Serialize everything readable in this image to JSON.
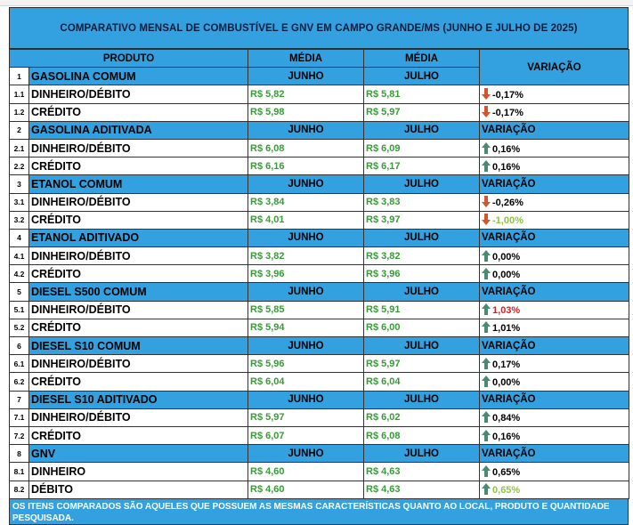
{
  "title": "COMPARATIVO MENSAL  DE COMBUSTÍVEL E GNV EM CAMPO GRANDE/MS (JUNHO E JULHO DE 2025)",
  "header": {
    "produto": "PRODUTO",
    "media1": "MÉDIA",
    "media2": "MÉDIA",
    "variacao": "VARIAÇÃO",
    "junho": "JUNHO",
    "julho": "JULHO"
  },
  "groups": [
    {
      "num": "1",
      "name": "GASOLINA COMUM",
      "col1": "JUNHO",
      "col2": "JULHO",
      "col3": "",
      "rows": [
        {
          "num": "1.1",
          "name": "DINHEIRO/DÉBITO",
          "v1": "R$ 5,82",
          "v2": "R$ 5,81",
          "dir": "down",
          "var": "-0,17%",
          "varcolor": "black"
        },
        {
          "num": "1.2",
          "name": "CRÉDITO",
          "v1": "R$ 5,98",
          "v2": "R$ 5,97",
          "dir": "down",
          "var": "-0,17%",
          "varcolor": "black"
        }
      ]
    },
    {
      "num": "2",
      "name": "GASOLINA ADITIVADA",
      "col1": "JUNHO",
      "col2": "JULHO",
      "col3": "VARIAÇÃO",
      "rows": [
        {
          "num": "2.1",
          "name": "DINHEIRO/DÉBITO",
          "v1": "R$ 6,08",
          "v2": "R$ 6,09",
          "dir": "up",
          "var": "0,16%",
          "varcolor": "black"
        },
        {
          "num": "2.2",
          "name": "CRÉDITO",
          "v1": "R$ 6,16",
          "v2": "R$ 6,17",
          "dir": "up",
          "var": "0,16%",
          "varcolor": "black"
        }
      ]
    },
    {
      "num": "3",
      "name": "ETANOL COMUM",
      "col1": "JUNHO",
      "col2": "JULHO",
      "col3": "VARIAÇÃO",
      "rows": [
        {
          "num": "3.1",
          "name": " DINHEIRO/DÉBITO",
          "v1": "R$ 3,84",
          "v2": "R$ 3,83",
          "dir": "down",
          "var": "-0,26%",
          "varcolor": "black"
        },
        {
          "num": "3.2",
          "name": "CRÉDITO",
          "v1": "R$ 4,01",
          "v2": "R$ 3,97",
          "dir": "down",
          "var": "-1,00%",
          "varcolor": "green"
        }
      ]
    },
    {
      "num": "4",
      "name": "ETANOL ADITIVADO",
      "col1": "JUNHO",
      "col2": "JULHO",
      "col3": "VARIAÇÃO",
      "rows": [
        {
          "num": "4.1",
          "name": "DINHEIRO/DÉBITO",
          "v1": "R$ 3,82",
          "v2": "R$ 3,82",
          "dir": "up",
          "var": "0,00%",
          "varcolor": "black"
        },
        {
          "num": "4.2",
          "name": "CRÉDITO",
          "v1": "R$ 3,96",
          "v2": "R$ 3,96",
          "dir": "up",
          "var": "0,00%",
          "varcolor": "black"
        }
      ]
    },
    {
      "num": "5",
      "name": "DIESEL S500 COMUM",
      "col1": "JUNHO",
      "col2": "JULHO",
      "col3": "VARIAÇÃO",
      "rows": [
        {
          "num": "5.1",
          "name": "DINHEIRO/DÉBITO",
          "v1": "R$ 5,85",
          "v2": "R$ 5,91",
          "dir": "up",
          "var": "1,03%",
          "varcolor": "red"
        },
        {
          "num": "5.2",
          "name": "CRÉDITO",
          "v1": "R$ 5,94",
          "v2": "R$ 6,00",
          "dir": "up",
          "var": "1,01%",
          "varcolor": "black"
        }
      ]
    },
    {
      "num": "6",
      "name": "DIESEL S10 COMUM",
      "col1": "JUNHO",
      "col2": "JULHO",
      "col3": "VARIAÇÃO",
      "rows": [
        {
          "num": "6.1",
          "name": "DINHEIRO/DÉBITO",
          "v1": "R$ 5,96",
          "v2": "R$ 5,97",
          "dir": "up",
          "var": "0,17%",
          "varcolor": "black"
        },
        {
          "num": "6.2",
          "name": "CRÉDITO",
          "v1": "R$ 6,04",
          "v2": "R$ 6,04",
          "dir": "up",
          "var": "0,00%",
          "varcolor": "black"
        }
      ]
    },
    {
      "num": "7",
      "name": "DIESEL S10 ADITIVADO",
      "col1": "JUNHO",
      "col2": "JULHO",
      "col3": "VARIAÇÃO",
      "rows": [
        {
          "num": "7.1",
          "name": "DINHEIRO/DÉBITO",
          "v1": "R$ 5,97",
          "v2": "R$ 6,02",
          "dir": "up",
          "var": "0,84%",
          "varcolor": "black"
        },
        {
          "num": "7.2",
          "name": "CRÉDITO",
          "v1": "R$ 6,07",
          "v2": "R$ 6,08",
          "dir": "up",
          "var": "0,16%",
          "varcolor": "black"
        }
      ]
    },
    {
      "num": "8",
      "name": "GNV",
      "col1": "JUNHO",
      "col2": "JULHO",
      "col3": "VARIAÇÃO",
      "rows": [
        {
          "num": "8.1",
          "name": "DINHEIRO",
          "v1": "R$ 4,60",
          "v2": "R$ 4,63",
          "dir": "up",
          "var": "0,65%",
          "varcolor": "black"
        },
        {
          "num": "8.2",
          "name": "DÉBITO",
          "v1": "R$ 4,60",
          "v2": "R$ 4,63",
          "dir": "up",
          "var": "0,65%",
          "varcolor": "green"
        }
      ]
    }
  ],
  "footer": "OS ITENS COMPARADOS SÃO AQUELES QUE POSSUEM AS MESMAS CARACTERÍSTICAS QUANTO AO LOCAL, PRODUTO E QUANTIDADE PESQUISADA.",
  "colors": {
    "header_blue": "#33a1df",
    "value_green": "#3a9a3a",
    "down_arrow": "#d2552b",
    "up_arrow": "#4b8a72",
    "red_text": "#e11b1b",
    "lime_text": "#8cc63f"
  }
}
